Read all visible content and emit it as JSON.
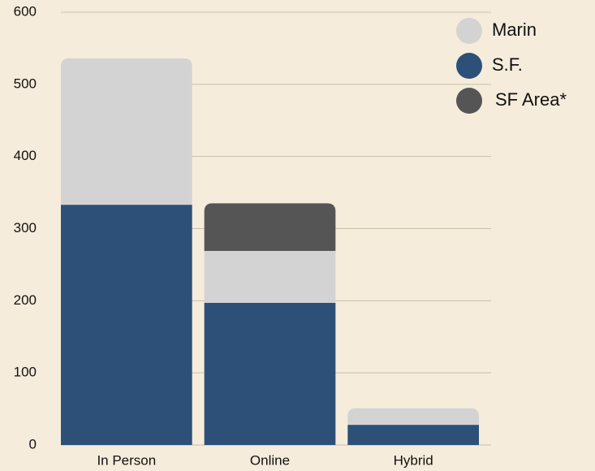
{
  "chart_data": {
    "type": "stacked_bar",
    "categories": [
      "In Person",
      "Online",
      "Hybrid"
    ],
    "series": [
      {
        "name": "Marin",
        "color": "#d3d3d3",
        "values": [
          203,
          72,
          23
        ]
      },
      {
        "name": "S.F.",
        "color": "#2d5079",
        "values": [
          333,
          197,
          28
        ]
      },
      {
        "name": "SF Area*",
        "color": "#555555",
        "values": [
          0,
          66,
          0
        ]
      }
    ],
    "ylim": [
      0,
      600
    ],
    "yticks": [
      0,
      100,
      200,
      300,
      400,
      500,
      600
    ],
    "grid": true,
    "legend": "upper right"
  }
}
